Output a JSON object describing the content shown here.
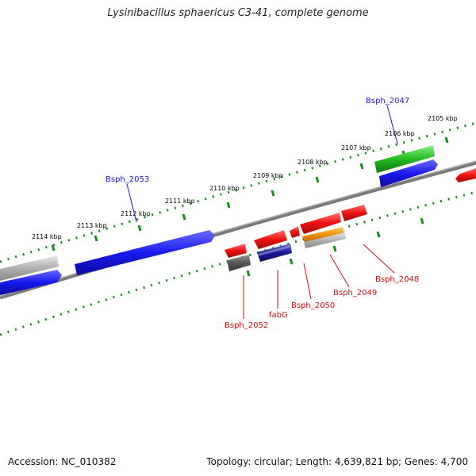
{
  "title": "Lysinibacillus sphaericus C3-41, complete genome",
  "footer": {
    "accession": "Accession: NC_010382",
    "summary": "Topology: circular; Length: 4,639,821 bp; Genes: 4,700"
  },
  "colors": {
    "backbone": "#808080",
    "tick": "#1a8a1a",
    "forward_cds": "#1a1aee",
    "reverse_cds": "#ee1111",
    "label_forward": "#1a1acc",
    "label_reverse": "#cc1111",
    "green_gene": "#22bb22",
    "orange_gene": "#ee8800",
    "gray_gene": "#aaaaaa",
    "dark_gene": "#555555",
    "navy_gene": "#1a1a99"
  },
  "scale_labels": [
    "2114 kbp",
    "2113 kbp",
    "2112 kbp",
    "2111 kbp",
    "2110 kbp",
    "2109 kbp",
    "2108 kbp",
    "2107 kbp",
    "2106 kbp",
    "2105 kbp"
  ],
  "gene_labels": [
    "Bsph_2047",
    "Bsph_2053",
    "Bsph_2052",
    "fabG",
    "Bsph_2050",
    "Bsph_2049",
    "Bsph_2048"
  ]
}
